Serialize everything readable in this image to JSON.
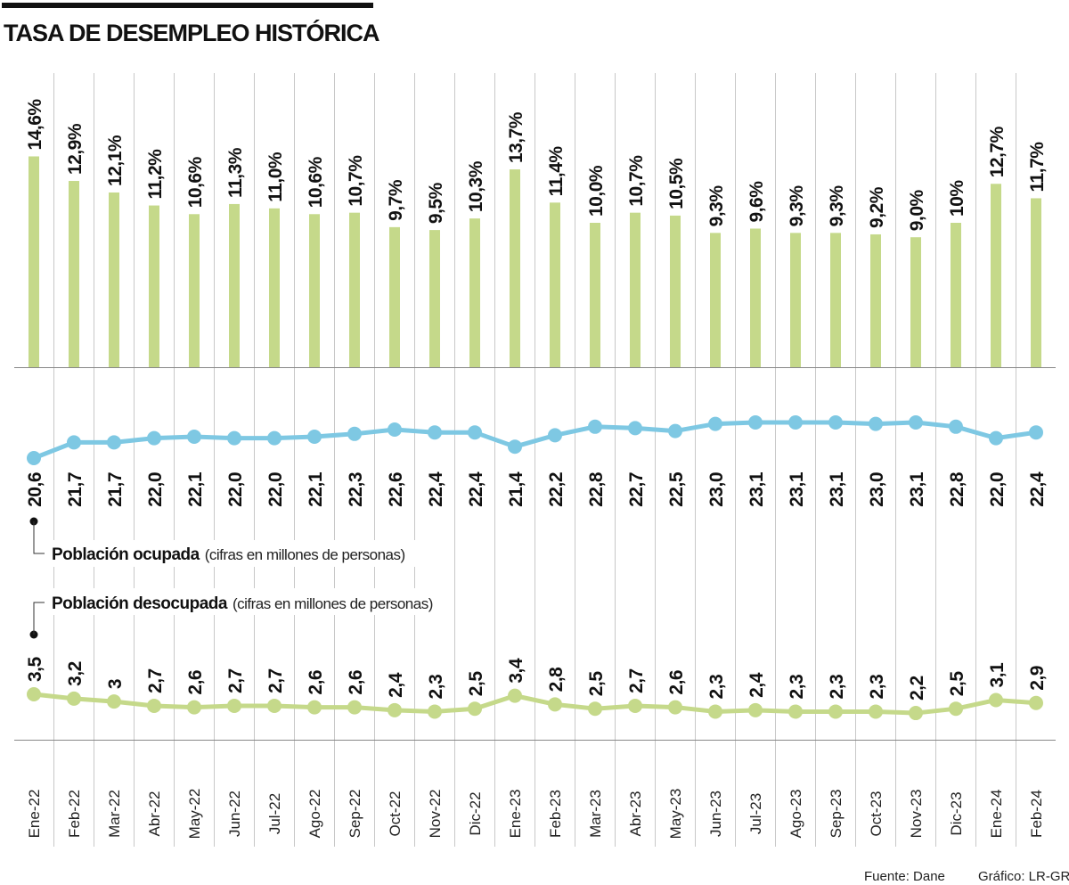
{
  "chart_data": {
    "type": "bar+line",
    "title": "TASA DE DESEMPLEO HISTÓRICA",
    "categories": [
      "Ene-22",
      "Feb-22",
      "Mar-22",
      "Abr-22",
      "May-22",
      "Jun-22",
      "Jul-22",
      "Ago-22",
      "Sep-22",
      "Oct-22",
      "Nov-22",
      "Dic-22",
      "Ene-23",
      "Feb-23",
      "Mar-23",
      "Abr-23",
      "May-23",
      "Jun-23",
      "Jul-23",
      "Ago-23",
      "Sep-23",
      "Oct-23",
      "Nov-23",
      "Dic-23",
      "Ene-24",
      "Feb-24"
    ],
    "unemployment_rate": {
      "type": "bar",
      "values": [
        14.6,
        12.9,
        12.1,
        11.2,
        10.6,
        11.3,
        11.0,
        10.6,
        10.7,
        9.7,
        9.5,
        10.3,
        13.7,
        11.4,
        10.0,
        10.7,
        10.5,
        9.3,
        9.6,
        9.3,
        9.3,
        9.2,
        9.0,
        10,
        12.7,
        11.7
      ],
      "labels": [
        "14,6%",
        "12,9%",
        "12,1%",
        "11,2%",
        "10,6%",
        "11,3%",
        "11,0%",
        "10,6%",
        "10,7%",
        "9,7%",
        "9,5%",
        "10,3%",
        "13,7%",
        "11,4%",
        "10,0%",
        "10,7%",
        "10,5%",
        "9,3%",
        "9,6%",
        "9,3%",
        "9,3%",
        "9,2%",
        "9,0%",
        "10%",
        "12,7%",
        "11,7%"
      ],
      "color": "#c5d98a"
    },
    "ocupada": {
      "type": "line",
      "name_bold": "Población ocupada",
      "name_note": "(cifras en millones de personas)",
      "values": [
        20.6,
        21.7,
        21.7,
        22.0,
        22.1,
        22.0,
        22.0,
        22.1,
        22.3,
        22.6,
        22.4,
        22.4,
        21.4,
        22.2,
        22.8,
        22.7,
        22.5,
        23.0,
        23.1,
        23.1,
        23.1,
        23.0,
        23.1,
        22.8,
        22.0,
        22.4
      ],
      "labels": [
        "20,6",
        "21,7",
        "21,7",
        "22,0",
        "22,1",
        "22,0",
        "22,0",
        "22,1",
        "22,3",
        "22,6",
        "22,4",
        "22,4",
        "21,4",
        "22,2",
        "22,8",
        "22,7",
        "22,5",
        "23,0",
        "23,1",
        "23,1",
        "23,1",
        "23,0",
        "23,1",
        "22,8",
        "22,0",
        "22,4"
      ],
      "color": "#7ec8e3"
    },
    "desocupada": {
      "type": "line",
      "name_bold": "Población desocupada",
      "name_note": "(cifras en millones de personas)",
      "values": [
        3.5,
        3.2,
        3,
        2.7,
        2.6,
        2.7,
        2.7,
        2.6,
        2.6,
        2.4,
        2.3,
        2.5,
        3.4,
        2.8,
        2.5,
        2.7,
        2.6,
        2.3,
        2.4,
        2.3,
        2.3,
        2.3,
        2.2,
        2.5,
        3.1,
        2.9
      ],
      "labels": [
        "3,5",
        "3,2",
        "3",
        "2,7",
        "2,6",
        "2,7",
        "2,7",
        "2,6",
        "2,6",
        "2,4",
        "2,3",
        "2,5",
        "3,4",
        "2,8",
        "2,5",
        "2,7",
        "2,6",
        "2,3",
        "2,4",
        "2,3",
        "2,3",
        "2,3",
        "2,2",
        "2,5",
        "3,1",
        "2,9"
      ],
      "color": "#c5d98a"
    },
    "grid": true,
    "source": "Fuente: Dane",
    "credit": "Gráfico: LR-GR"
  }
}
